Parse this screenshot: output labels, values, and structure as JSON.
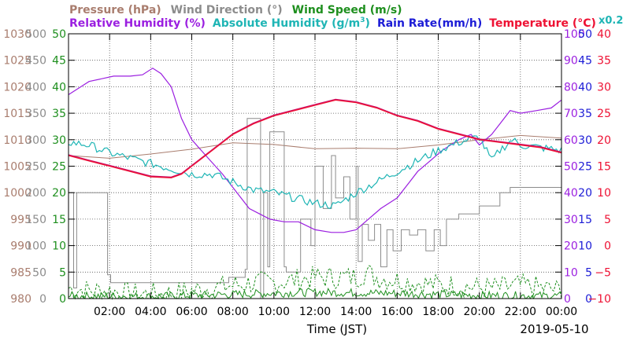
{
  "legend": {
    "row1": [
      {
        "label": "Pressure (hPa)",
        "color": "#a97d6e"
      },
      {
        "label": "Wind Direction (°)",
        "color": "#8c8c8c"
      },
      {
        "label": "Wind Speed (m/s)",
        "color": "#1e8f1e"
      }
    ],
    "row2": [
      {
        "label": "Relative Humidity (%)",
        "color": "#9b1fe0"
      },
      {
        "label": "Absolute Humidity (g/m³)",
        "color": "#1fb5b5"
      },
      {
        "label": "Rain Rate(mm/h)",
        "color": "#1c1cd6"
      },
      {
        "label": "Temperature  (°C)",
        "color": "#ee1133"
      }
    ],
    "absolute_humidity_scale_note": "x0.2"
  },
  "chart_data": {
    "type": "line",
    "xlabel": "Time (JST)",
    "date_label": "2019-05-10",
    "x_ticks": [
      "02:00",
      "04:00",
      "06:00",
      "08:00",
      "10:00",
      "12:00",
      "14:00",
      "16:00",
      "18:00",
      "20:00",
      "22:00",
      "00:00"
    ],
    "x_range_hours": [
      0,
      24
    ],
    "grid": true,
    "axes": [
      {
        "name": "Pressure (hPa)",
        "side": "left",
        "color": "#a97d6e",
        "range": [
          980,
          1030
        ],
        "ticks": [
          "980",
          "985",
          "990",
          "995",
          "1000",
          "1005",
          "1010",
          "1015",
          "1020",
          "1025",
          "1030"
        ]
      },
      {
        "name": "Wind Direction (°)",
        "side": "left",
        "color": "#8c8c8c",
        "range": [
          0,
          500
        ],
        "ticks": [
          "0",
          "50",
          "100",
          "150",
          "200",
          "250",
          "300",
          "350",
          "400",
          "450",
          "500"
        ]
      },
      {
        "name": "Wind Speed (m/s)",
        "side": "left",
        "color": "#1e8f1e",
        "range": [
          0,
          50
        ],
        "ticks": [
          "0",
          "5",
          "10",
          "15",
          "20",
          "25",
          "30",
          "35",
          "40",
          "45",
          "50"
        ]
      },
      {
        "name": "Relative Humidity (%)",
        "side": "right",
        "color": "#9b1fe0",
        "range": [
          0,
          100
        ],
        "ticks": [
          "0",
          "10",
          "20",
          "30",
          "40",
          "50",
          "60",
          "70",
          "80",
          "90",
          "100"
        ]
      },
      {
        "name": "Rain Rate(mm/h)",
        "side": "right",
        "color": "#1c1cd6",
        "range": [
          0,
          50
        ],
        "ticks": [
          "0",
          "5",
          "10",
          "15",
          "20",
          "25",
          "30",
          "35",
          "40",
          "45",
          "50"
        ]
      },
      {
        "name": "Temperature (°C)",
        "side": "right",
        "color": "#ee1133",
        "range": [
          -10,
          40
        ],
        "ticks": [
          "−10",
          "−5",
          "0",
          "5",
          "10",
          "15",
          "20",
          "25",
          "30",
          "35",
          "40"
        ]
      }
    ],
    "series": [
      {
        "name": "Pressure (hPa)",
        "color": "#a97d6e",
        "axis": 0,
        "width": 1,
        "points": [
          [
            0,
            1007
          ],
          [
            2,
            1006.5
          ],
          [
            4,
            1007.3
          ],
          [
            6,
            1008.2
          ],
          [
            8,
            1009.4
          ],
          [
            10,
            1009.1
          ],
          [
            12,
            1008.3
          ],
          [
            14,
            1008.4
          ],
          [
            16,
            1008.3
          ],
          [
            18,
            1009
          ],
          [
            20,
            1010
          ],
          [
            22,
            1010.8
          ],
          [
            24,
            1010.3
          ]
        ]
      },
      {
        "name": "Wind Direction (°)",
        "color": "#8c8c8c",
        "axis": 1,
        "width": 1,
        "step": true,
        "points": [
          [
            0,
            200
          ],
          [
            0.25,
            20
          ],
          [
            0.4,
            200
          ],
          [
            1.85,
            200
          ],
          [
            1.9,
            45
          ],
          [
            2.05,
            30
          ],
          [
            6,
            30
          ],
          [
            7.8,
            40
          ],
          [
            8.6,
            55
          ],
          [
            8.7,
            340
          ],
          [
            9.3,
            340
          ],
          [
            9.35,
            0
          ],
          [
            9.5,
            200
          ],
          [
            9.7,
            60
          ],
          [
            9.8,
            315
          ],
          [
            10.4,
            315
          ],
          [
            10.5,
            60
          ],
          [
            10.6,
            50
          ],
          [
            11.2,
            50
          ],
          [
            11.3,
            150
          ],
          [
            11.8,
            100
          ],
          [
            12.0,
            250
          ],
          [
            12.4,
            170
          ],
          [
            12.8,
            270
          ],
          [
            13.0,
            190
          ],
          [
            13.4,
            230
          ],
          [
            13.7,
            150
          ],
          [
            14.0,
            250
          ],
          [
            14.1,
            70
          ],
          [
            14.3,
            140
          ],
          [
            14.6,
            110
          ],
          [
            14.9,
            140
          ],
          [
            15.2,
            60
          ],
          [
            15.5,
            130
          ],
          [
            15.8,
            90
          ],
          [
            16.2,
            130
          ],
          [
            16.6,
            120
          ],
          [
            17,
            130
          ],
          [
            17.4,
            90
          ],
          [
            17.8,
            130
          ],
          [
            18.1,
            100
          ],
          [
            18.4,
            150
          ],
          [
            19,
            160
          ],
          [
            19.6,
            160
          ],
          [
            20,
            175
          ],
          [
            21,
            200
          ],
          [
            21.2,
            200
          ],
          [
            21.5,
            210
          ],
          [
            24,
            210
          ]
        ]
      },
      {
        "name": "Wind Speed (m/s)",
        "color": "#1e8f1e",
        "axis": 2,
        "width": 1,
        "dashed": true,
        "noisy": true,
        "points": [
          [
            0,
            2
          ],
          [
            1,
            1.5
          ],
          [
            2,
            1.5
          ],
          [
            3,
            0.8
          ],
          [
            4,
            0.8
          ],
          [
            5,
            1
          ],
          [
            6,
            1.5
          ],
          [
            7,
            2
          ],
          [
            8,
            2.5
          ],
          [
            9,
            3
          ],
          [
            10,
            3
          ],
          [
            11,
            3.5
          ],
          [
            12,
            4
          ],
          [
            13,
            4
          ],
          [
            14,
            4
          ],
          [
            14.5,
            5
          ],
          [
            15,
            4
          ],
          [
            16,
            3.5
          ],
          [
            17,
            3
          ],
          [
            18,
            2.5
          ],
          [
            19,
            2.5
          ],
          [
            20,
            2
          ],
          [
            21,
            2
          ],
          [
            22,
            2.5
          ],
          [
            23,
            2
          ],
          [
            24,
            1.5
          ]
        ]
      },
      {
        "name": "Wind Speed (m/s)",
        "color": "#1e8f1e",
        "axis": 2,
        "width": 1,
        "noisy": true,
        "solid_low": true,
        "points": [
          [
            0,
            0.5
          ],
          [
            4,
            0.4
          ],
          [
            8,
            0.8
          ],
          [
            12,
            1.2
          ],
          [
            16,
            1
          ],
          [
            20,
            0.6
          ],
          [
            24,
            0.5
          ]
        ]
      },
      {
        "name": "Relative Humidity (%)",
        "color": "#9b1fe0",
        "axis": 3,
        "width": 1.2,
        "points": [
          [
            0,
            77
          ],
          [
            0.6,
            80
          ],
          [
            1,
            82
          ],
          [
            2.2,
            84
          ],
          [
            3,
            84
          ],
          [
            3.6,
            84.5
          ],
          [
            4.1,
            87
          ],
          [
            4.5,
            85
          ],
          [
            5,
            80
          ],
          [
            5.5,
            68
          ],
          [
            6,
            60
          ],
          [
            6.8,
            53
          ],
          [
            7.5,
            47
          ],
          [
            8.2,
            40
          ],
          [
            8.8,
            34
          ],
          [
            9.3,
            32
          ],
          [
            9.8,
            30
          ],
          [
            10.5,
            29
          ],
          [
            11.2,
            29
          ],
          [
            12,
            26
          ],
          [
            12.8,
            25
          ],
          [
            13.4,
            25
          ],
          [
            14,
            26
          ],
          [
            14.6,
            30
          ],
          [
            15.2,
            34
          ],
          [
            16,
            38
          ],
          [
            16.6,
            44
          ],
          [
            17,
            48
          ],
          [
            17.6,
            52
          ],
          [
            18.2,
            56
          ],
          [
            19,
            60
          ],
          [
            19.6,
            62
          ],
          [
            20,
            58
          ],
          [
            20.6,
            62
          ],
          [
            21,
            66
          ],
          [
            21.5,
            71
          ],
          [
            22,
            70
          ],
          [
            22.8,
            71
          ],
          [
            23.5,
            72
          ],
          [
            24,
            75
          ]
        ]
      },
      {
        "name": "Absolute Humidity (g/m³)",
        "color": "#1fb5b5",
        "axis": 3,
        "width": 1.2,
        "noisy": true,
        "points": [
          [
            0,
            59
          ],
          [
            1,
            58
          ],
          [
            2,
            55
          ],
          [
            3,
            53
          ],
          [
            4,
            51
          ],
          [
            5,
            49
          ],
          [
            6,
            47
          ],
          [
            7,
            47
          ],
          [
            8,
            44
          ],
          [
            9,
            41
          ],
          [
            10,
            40
          ],
          [
            11,
            38
          ],
          [
            12,
            36
          ],
          [
            13,
            35
          ],
          [
            14,
            40
          ],
          [
            15,
            44
          ],
          [
            16,
            48
          ],
          [
            17,
            52
          ],
          [
            18,
            56
          ],
          [
            19,
            59
          ],
          [
            20,
            61
          ],
          [
            20.6,
            52
          ],
          [
            21,
            56
          ],
          [
            21.6,
            60
          ],
          [
            22,
            58
          ],
          [
            23,
            57
          ],
          [
            24,
            56
          ]
        ]
      },
      {
        "name": "Temperature (°C)",
        "color": "#ee1133",
        "axis": 5,
        "width": 1.4,
        "points": [
          [
            0,
            17
          ],
          [
            1,
            16
          ],
          [
            2,
            15
          ],
          [
            3,
            14
          ],
          [
            4,
            13
          ],
          [
            5,
            12.8
          ],
          [
            5.5,
            13.5
          ],
          [
            6,
            15
          ],
          [
            7,
            18
          ],
          [
            8,
            21
          ],
          [
            9,
            23
          ],
          [
            10,
            24.5
          ],
          [
            11,
            25.5
          ],
          [
            12,
            26.5
          ],
          [
            13,
            27.5
          ],
          [
            14,
            27
          ],
          [
            15,
            26
          ],
          [
            16,
            24.5
          ],
          [
            17,
            23.5
          ],
          [
            18,
            22
          ],
          [
            19,
            21
          ],
          [
            20,
            20
          ],
          [
            21,
            19.5
          ],
          [
            22,
            19
          ],
          [
            23,
            18.5
          ],
          [
            24,
            17.5
          ]
        ]
      },
      {
        "name": "Rain Rate(mm/h)",
        "color": "#1c1cd6",
        "axis": 4,
        "width": 1,
        "points": [
          [
            0,
            0
          ],
          [
            24,
            0
          ]
        ]
      }
    ]
  }
}
